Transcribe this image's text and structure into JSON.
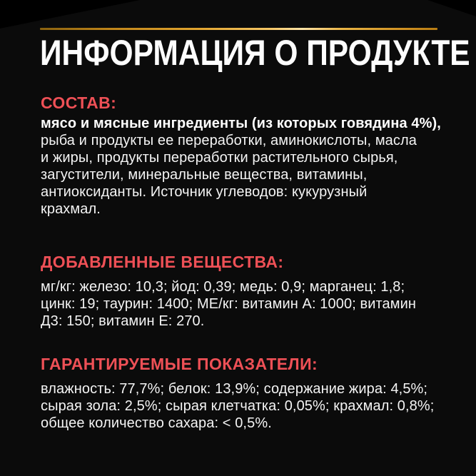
{
  "page": {
    "background_color": "#0b0b0b",
    "accent_red": "#ee5056",
    "gold_line_color": "#d99c23",
    "text_color": "#f4f4f4"
  },
  "header": {
    "title": "ИНФОРМАЦИЯ О ПРОДУКТЕ"
  },
  "sections": {
    "composition": {
      "heading": "СОСТАВ:",
      "bold_intro": "мясо и мясные ингредиенты (из которых говядина 4%),",
      "lines": [
        "рыба и продукты ее переработки, аминокислоты, масла",
        "и жиры, продукты переработки растительного сырья,",
        "загустители, минеральные вещества, витамины,",
        "антиоксиданты. Источник углеводов: кукурузный",
        "крахмал."
      ]
    },
    "additives": {
      "heading": "ДОБАВЛЕННЫЕ ВЕЩЕСТВА:",
      "lines": [
        "мг/кг: железо: 10,3; йод: 0,39; медь: 0,9; марганец: 1,8;",
        "цинк: 19; таурин: 1400; МЕ/кг: витамин А: 1000; витамин",
        "Д3: 150; витамин Е: 270."
      ]
    },
    "guaranteed": {
      "heading": "ГАРАНТИРУЕМЫЕ ПОКАЗАТЕЛИ:",
      "lines": [
        "влажность: 77,7%; белок: 13,9%; содержание жира: 4,5%;",
        "сырая зола: 2,5%; сырая клетчатка: 0,05%; крахмал: 0,8%;",
        "общее количество сахара: < 0,5%."
      ]
    }
  }
}
